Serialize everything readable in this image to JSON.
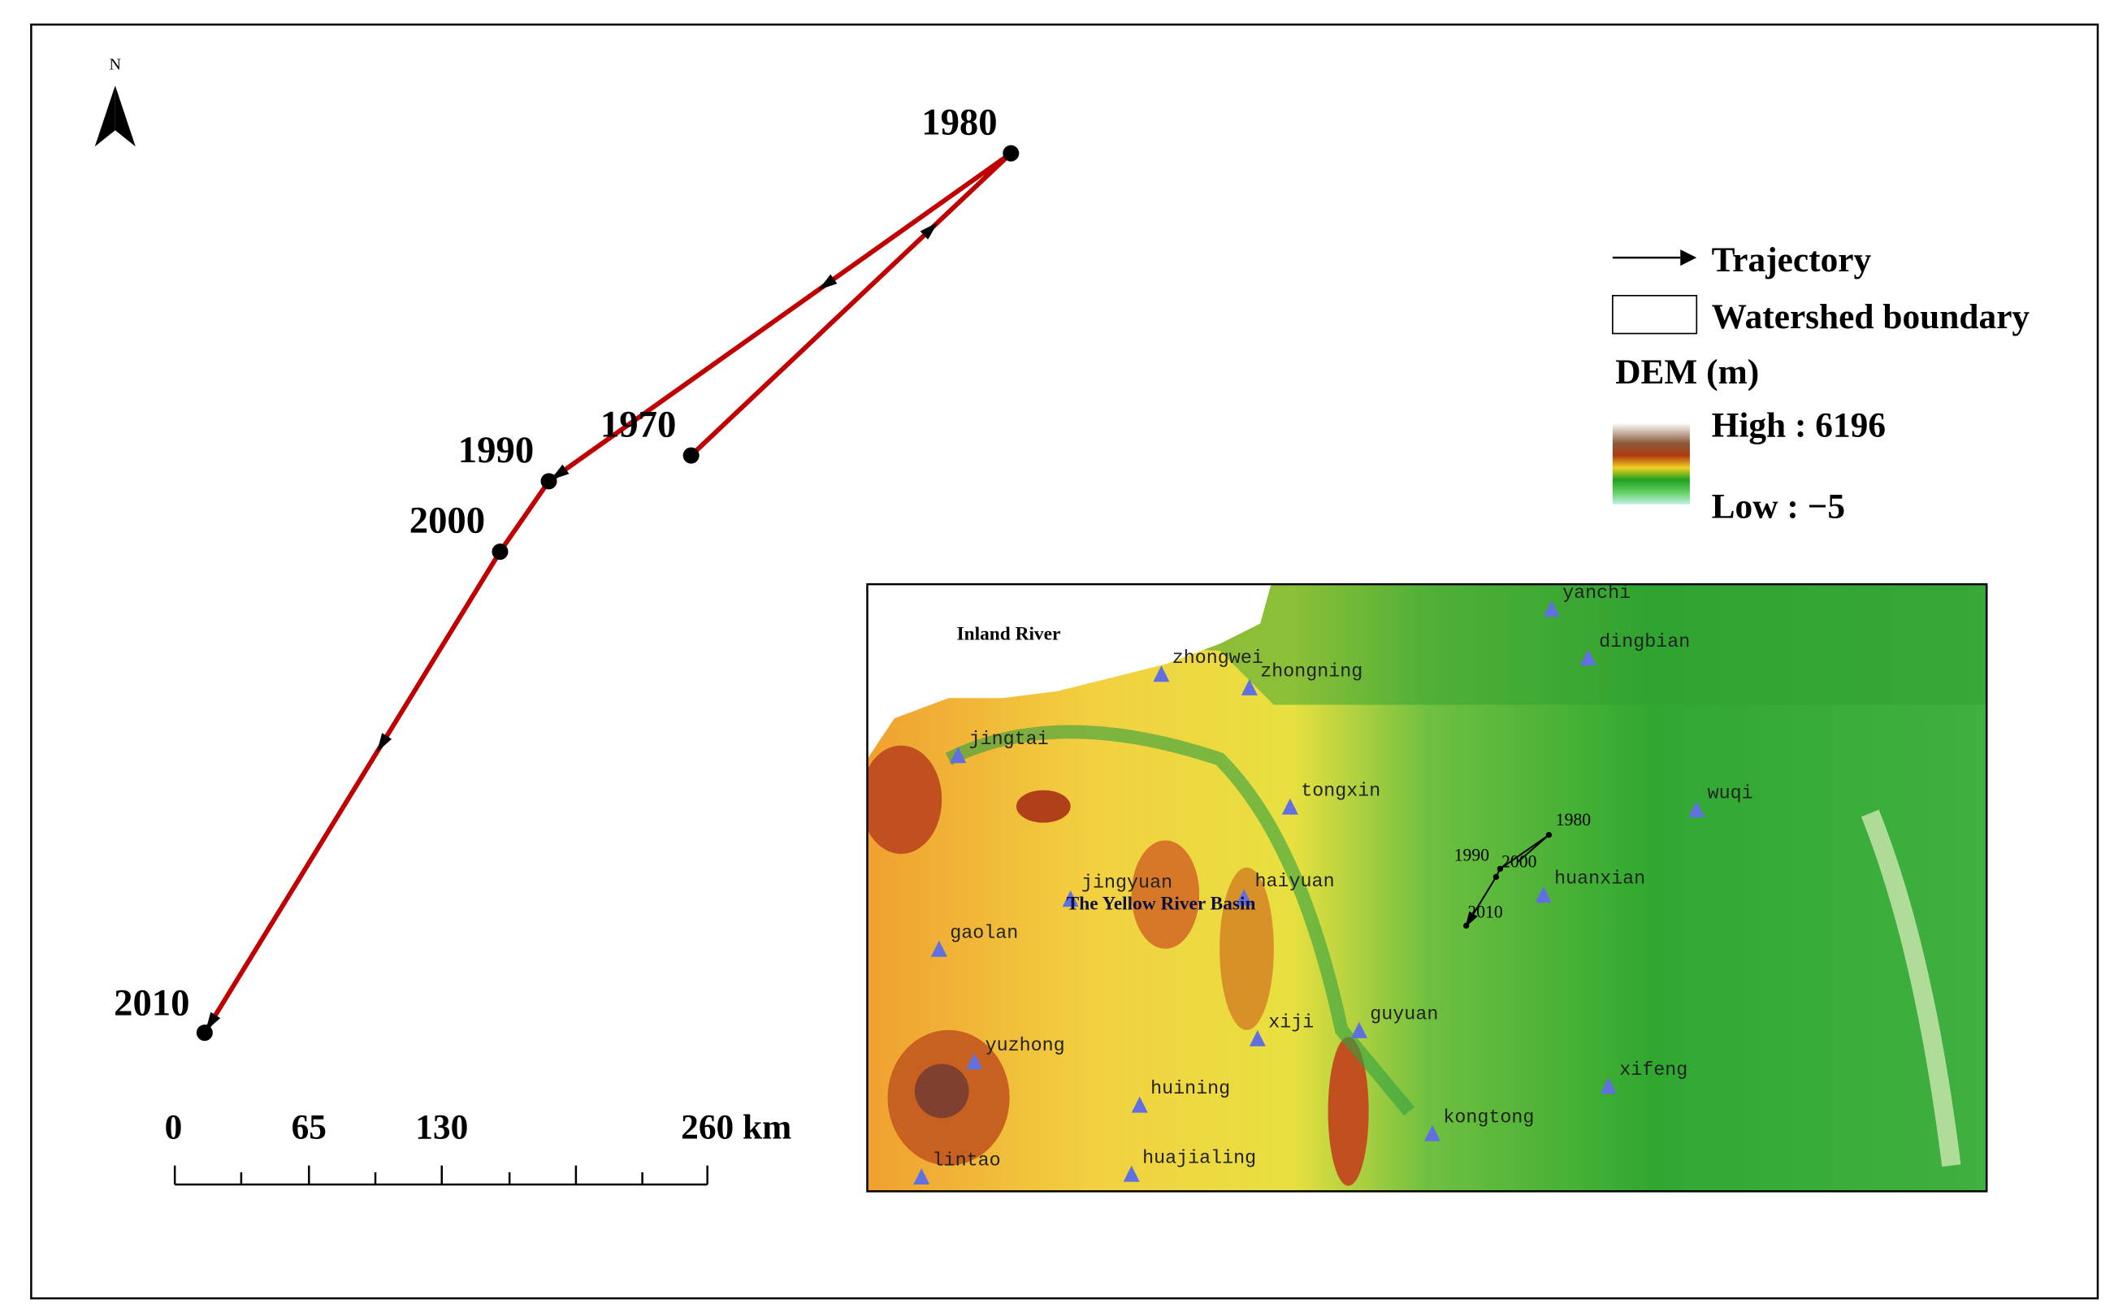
{
  "north": "N",
  "trajectory": {
    "labels": [
      "1970",
      "1980",
      "1990",
      "2000",
      "2010"
    ]
  },
  "scale_bar": {
    "labels": [
      "0",
      "65",
      "130",
      "260"
    ],
    "unit": "km"
  },
  "legend": {
    "trajectory": "Trajectory",
    "boundary": "Watershed boundary",
    "dem_title": "DEM (m)",
    "high": "High : 6196",
    "low": "Low : −5"
  },
  "inset": {
    "regions": [
      "Inland River",
      "The Yellow River Basin"
    ],
    "stations": [
      "yanchi",
      "dingbian",
      "zhongwei",
      "zhongning",
      "jingtai",
      "tongxin",
      "wuqi",
      "jingyuan",
      "haiyuan",
      "huanxian",
      "gaolan",
      "xiji",
      "guyuan",
      "yuzhong",
      "xifeng",
      "huining",
      "kongtong",
      "lintao",
      "huajialing"
    ],
    "trajectory_labels": [
      "1980",
      "1990",
      "2000",
      "2010"
    ]
  }
}
